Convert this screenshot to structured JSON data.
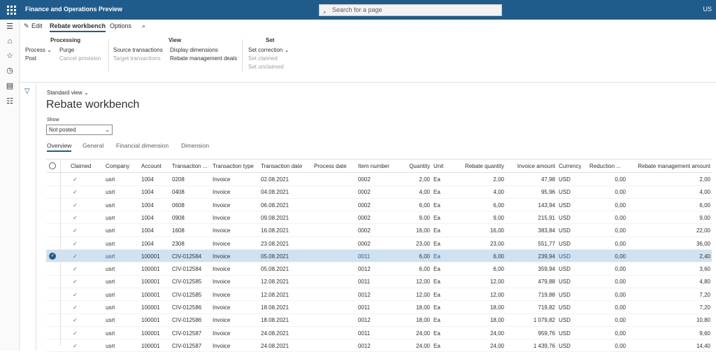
{
  "app": {
    "title": "Finance and Operations Preview",
    "search_placeholder": "Search for a page",
    "user": "US"
  },
  "icons": {
    "waffle": "waffle-icon",
    "search": "search-icon",
    "hamburger": "hamburger-icon",
    "home": "home-icon",
    "star": "star-icon",
    "clock": "clock-icon",
    "workspace": "workspace-icon",
    "list": "list-icon",
    "filter": "filter-icon",
    "edit": "pencil-icon",
    "chevron": "chevron-down-icon"
  },
  "ribbon_tabs": {
    "edit": "Edit",
    "rebate_workbench": "Rebate workbench",
    "options": "Options"
  },
  "ribbon": {
    "processing": {
      "title": "Processing",
      "process": "Process",
      "purge": "Purge",
      "post": "Post",
      "cancel_provision": "Cancel provision"
    },
    "view": {
      "title": "View",
      "source_transactions": "Source transactions",
      "target_transactions": "Target transactions",
      "display_dimensions": "Display dimensions",
      "rebate_deals": "Rebate management deals"
    },
    "set": {
      "title": "Set",
      "set_correction": "Set correction",
      "set_claimed": "Set claimed",
      "set_unclaimed": "Set unclaimed"
    }
  },
  "view_selector": "Standard view",
  "page_title": "Rebate workbench",
  "show": {
    "label": "Show",
    "value": "Not posted"
  },
  "subtabs": {
    "overview": "Overview",
    "general": "General",
    "financial_dimension": "Financial dimension",
    "dimension": "Dimension"
  },
  "grid": {
    "headers": {
      "claimed": "Claimed",
      "company": "Company",
      "account": "Account",
      "transaction": "Transaction ...",
      "type": "Transaction type",
      "date": "Transaction date",
      "process_date": "Process date",
      "item": "Item number",
      "quantity": "Quantity",
      "unit": "Unit",
      "rebate_qty": "Rebate quantity",
      "invoice_amount": "Invoice amount",
      "currency": "Currency",
      "reduction": "Reduction ...",
      "rebate_amount": "Rebate management amount"
    },
    "rows": [
      {
        "claimed": "✓",
        "company": "usrt",
        "account": "1004",
        "transaction": "0208",
        "type": "Invoice",
        "date": "02.08.2021",
        "process_date": "",
        "item": "0002",
        "quantity": "2,00",
        "unit": "Ea",
        "rebate_qty": "2,00",
        "invoice_amount": "47,98",
        "currency": "USD",
        "reduction": "0,00",
        "rebate_amount": "2,00"
      },
      {
        "claimed": "✓",
        "company": "usrt",
        "account": "1004",
        "transaction": "0408",
        "type": "Invoice",
        "date": "04.08.2021",
        "process_date": "",
        "item": "0002",
        "quantity": "4,00",
        "unit": "Ea",
        "rebate_qty": "4,00",
        "invoice_amount": "95,96",
        "currency": "USD",
        "reduction": "0,00",
        "rebate_amount": "4,00"
      },
      {
        "claimed": "✓",
        "company": "usrt",
        "account": "1004",
        "transaction": "0608",
        "type": "Invoice",
        "date": "06.08.2021",
        "process_date": "",
        "item": "0002",
        "quantity": "6,00",
        "unit": "Ea",
        "rebate_qty": "6,00",
        "invoice_amount": "143,94",
        "currency": "USD",
        "reduction": "0,00",
        "rebate_amount": "6,00"
      },
      {
        "claimed": "✓",
        "company": "usrt",
        "account": "1004",
        "transaction": "0908",
        "type": "Invoice",
        "date": "09.08.2021",
        "process_date": "",
        "item": "0002",
        "quantity": "9,00",
        "unit": "Ea",
        "rebate_qty": "9,00",
        "invoice_amount": "215,91",
        "currency": "USD",
        "reduction": "0,00",
        "rebate_amount": "9,00"
      },
      {
        "claimed": "✓",
        "company": "usrt",
        "account": "1004",
        "transaction": "1608",
        "type": "Invoice",
        "date": "16.08.2021",
        "process_date": "",
        "item": "0002",
        "quantity": "16,00",
        "unit": "Ea",
        "rebate_qty": "16,00",
        "invoice_amount": "383,84",
        "currency": "USD",
        "reduction": "0,00",
        "rebate_amount": "22,00"
      },
      {
        "claimed": "✓",
        "company": "usrt",
        "account": "1004",
        "transaction": "2308",
        "type": "Invoice",
        "date": "23.08.2021",
        "process_date": "",
        "item": "0002",
        "quantity": "23,00",
        "unit": "Ea",
        "rebate_qty": "23,00",
        "invoice_amount": "551,77",
        "currency": "USD",
        "reduction": "0,00",
        "rebate_amount": "36,00"
      },
      {
        "claimed": "✓",
        "company": "usrt",
        "account": "100001",
        "transaction": "CIV-012584",
        "type": "Invoice",
        "date": "05.08.2021",
        "process_date": "",
        "item": "0011",
        "quantity": "6,00",
        "unit": "Ea",
        "rebate_qty": "6,00",
        "invoice_amount": "239,94",
        "currency": "USD",
        "reduction": "0,00",
        "rebate_amount": "2,40",
        "selected": true
      },
      {
        "claimed": "✓",
        "company": "usrt",
        "account": "100001",
        "transaction": "CIV-012584",
        "type": "Invoice",
        "date": "05.08.2021",
        "process_date": "",
        "item": "0012",
        "quantity": "6,00",
        "unit": "Ea",
        "rebate_qty": "6,00",
        "invoice_amount": "359,94",
        "currency": "USD",
        "reduction": "0,00",
        "rebate_amount": "3,60"
      },
      {
        "claimed": "✓",
        "company": "usrt",
        "account": "100001",
        "transaction": "CIV-012585",
        "type": "Invoice",
        "date": "12.08.2021",
        "process_date": "",
        "item": "0011",
        "quantity": "12,00",
        "unit": "Ea",
        "rebate_qty": "12,00",
        "invoice_amount": "479,88",
        "currency": "USD",
        "reduction": "0,00",
        "rebate_amount": "4,80"
      },
      {
        "claimed": "✓",
        "company": "usrt",
        "account": "100001",
        "transaction": "CIV-012585",
        "type": "Invoice",
        "date": "12.08.2021",
        "process_date": "",
        "item": "0012",
        "quantity": "12,00",
        "unit": "Ea",
        "rebate_qty": "12,00",
        "invoice_amount": "719,88",
        "currency": "USD",
        "reduction": "0,00",
        "rebate_amount": "7,20"
      },
      {
        "claimed": "✓",
        "company": "usrt",
        "account": "100001",
        "transaction": "CIV-012586",
        "type": "Invoice",
        "date": "18.08.2021",
        "process_date": "",
        "item": "0011",
        "quantity": "18,00",
        "unit": "Ea",
        "rebate_qty": "18,00",
        "invoice_amount": "719,82",
        "currency": "USD",
        "reduction": "0,00",
        "rebate_amount": "7,20"
      },
      {
        "claimed": "✓",
        "company": "usrt",
        "account": "100001",
        "transaction": "CIV-012586",
        "type": "Invoice",
        "date": "18.08.2021",
        "process_date": "",
        "item": "0012",
        "quantity": "18,00",
        "unit": "Ea",
        "rebate_qty": "18,00",
        "invoice_amount": "1 079,82",
        "currency": "USD",
        "reduction": "0,00",
        "rebate_amount": "10,80"
      },
      {
        "claimed": "✓",
        "company": "usrt",
        "account": "100001",
        "transaction": "CIV-012587",
        "type": "Invoice",
        "date": "24.08.2021",
        "process_date": "",
        "item": "0011",
        "quantity": "24,00",
        "unit": "Ea",
        "rebate_qty": "24,00",
        "invoice_amount": "959,76",
        "currency": "USD",
        "reduction": "0,00",
        "rebate_amount": "9,60"
      },
      {
        "claimed": "✓",
        "company": "usrt",
        "account": "100001",
        "transaction": "CIV-012587",
        "type": "Invoice",
        "date": "24.08.2021",
        "process_date": "",
        "item": "0012",
        "quantity": "24,00",
        "unit": "Ea",
        "rebate_qty": "24,00",
        "invoice_amount": "1 439,76",
        "currency": "USD",
        "reduction": "0,00",
        "rebate_amount": "14,40"
      }
    ]
  },
  "colors": {
    "brand": "#1f5c8b",
    "selected_row": "#cfe2f0"
  }
}
